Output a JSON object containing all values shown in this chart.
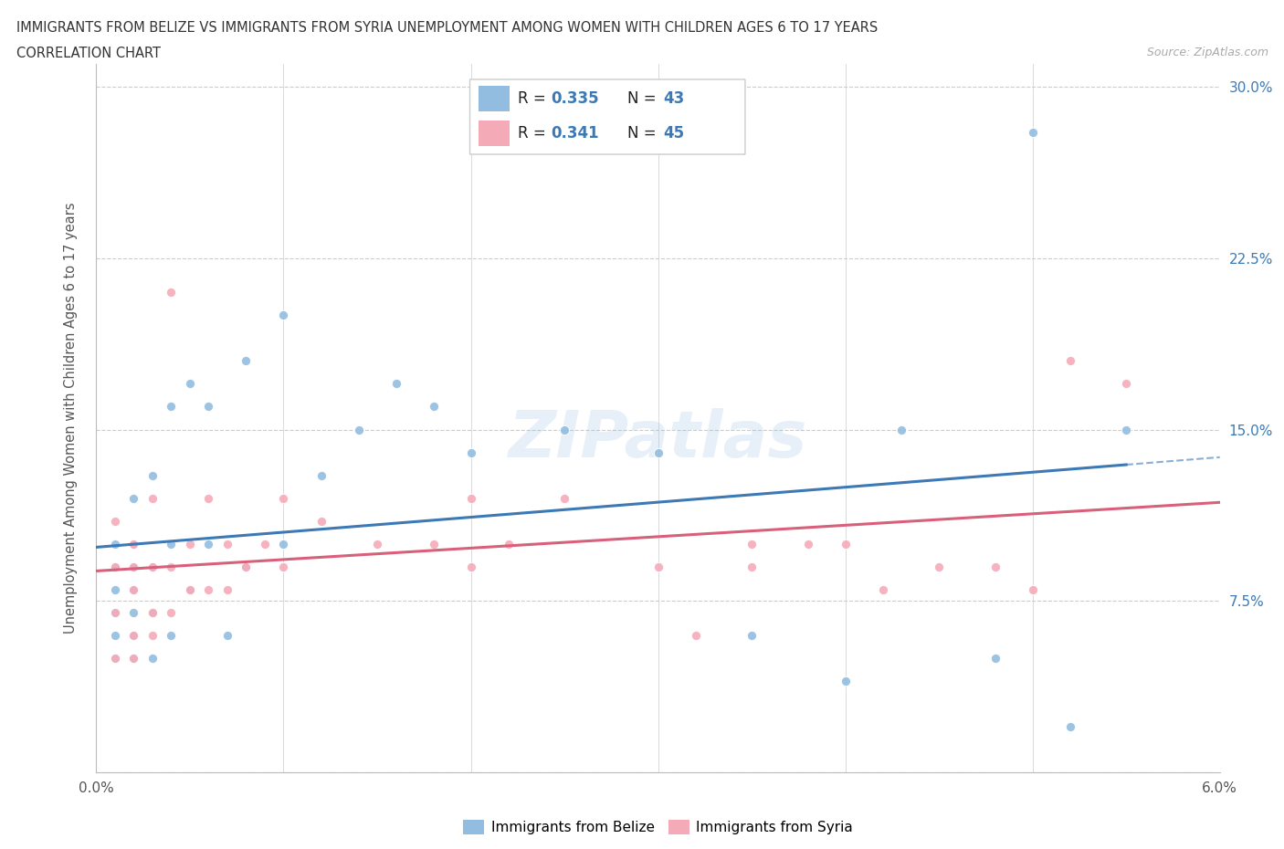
{
  "title_line1": "IMMIGRANTS FROM BELIZE VS IMMIGRANTS FROM SYRIA UNEMPLOYMENT AMONG WOMEN WITH CHILDREN AGES 6 TO 17 YEARS",
  "title_line2": "CORRELATION CHART",
  "source_text": "Source: ZipAtlas.com",
  "ylabel": "Unemployment Among Women with Children Ages 6 to 17 years",
  "xlim": [
    0.0,
    0.06
  ],
  "ylim": [
    0.0,
    0.31
  ],
  "xticks": [
    0.0,
    0.01,
    0.02,
    0.03,
    0.04,
    0.05,
    0.06
  ],
  "xticklabels": [
    "0.0%",
    "",
    "",
    "",
    "",
    "",
    "6.0%"
  ],
  "yticks": [
    0.0,
    0.075,
    0.15,
    0.225,
    0.3
  ],
  "yticklabels": [
    "",
    "7.5%",
    "15.0%",
    "22.5%",
    "30.0%"
  ],
  "belize_R": 0.335,
  "belize_N": 43,
  "syria_R": 0.341,
  "syria_N": 45,
  "belize_color": "#92bde0",
  "syria_color": "#f5aab8",
  "belize_line_color": "#3d7ab5",
  "syria_line_color": "#d9607a",
  "belize_x": [
    0.001,
    0.001,
    0.001,
    0.001,
    0.001,
    0.001,
    0.002,
    0.002,
    0.002,
    0.002,
    0.002,
    0.002,
    0.002,
    0.003,
    0.003,
    0.003,
    0.003,
    0.004,
    0.004,
    0.004,
    0.005,
    0.005,
    0.006,
    0.006,
    0.007,
    0.008,
    0.008,
    0.01,
    0.01,
    0.012,
    0.014,
    0.016,
    0.018,
    0.02,
    0.025,
    0.03,
    0.035,
    0.04,
    0.043,
    0.048,
    0.05,
    0.052,
    0.055
  ],
  "belize_y": [
    0.05,
    0.06,
    0.07,
    0.08,
    0.09,
    0.1,
    0.05,
    0.06,
    0.07,
    0.08,
    0.09,
    0.1,
    0.12,
    0.05,
    0.07,
    0.09,
    0.13,
    0.06,
    0.1,
    0.16,
    0.08,
    0.17,
    0.1,
    0.16,
    0.06,
    0.09,
    0.18,
    0.1,
    0.2,
    0.13,
    0.15,
    0.17,
    0.16,
    0.14,
    0.15,
    0.14,
    0.06,
    0.04,
    0.15,
    0.05,
    0.28,
    0.02,
    0.15
  ],
  "syria_x": [
    0.001,
    0.001,
    0.001,
    0.001,
    0.002,
    0.002,
    0.002,
    0.002,
    0.002,
    0.003,
    0.003,
    0.003,
    0.003,
    0.004,
    0.004,
    0.004,
    0.005,
    0.005,
    0.006,
    0.006,
    0.007,
    0.007,
    0.008,
    0.009,
    0.01,
    0.01,
    0.012,
    0.015,
    0.018,
    0.02,
    0.02,
    0.022,
    0.025,
    0.03,
    0.032,
    0.035,
    0.035,
    0.038,
    0.04,
    0.042,
    0.045,
    0.048,
    0.05,
    0.052,
    0.055
  ],
  "syria_y": [
    0.05,
    0.07,
    0.09,
    0.11,
    0.05,
    0.06,
    0.08,
    0.09,
    0.1,
    0.06,
    0.07,
    0.09,
    0.12,
    0.07,
    0.09,
    0.21,
    0.08,
    0.1,
    0.08,
    0.12,
    0.08,
    0.1,
    0.09,
    0.1,
    0.09,
    0.12,
    0.11,
    0.1,
    0.1,
    0.09,
    0.12,
    0.1,
    0.12,
    0.09,
    0.06,
    0.09,
    0.1,
    0.1,
    0.1,
    0.08,
    0.09,
    0.09,
    0.08,
    0.18,
    0.17
  ]
}
